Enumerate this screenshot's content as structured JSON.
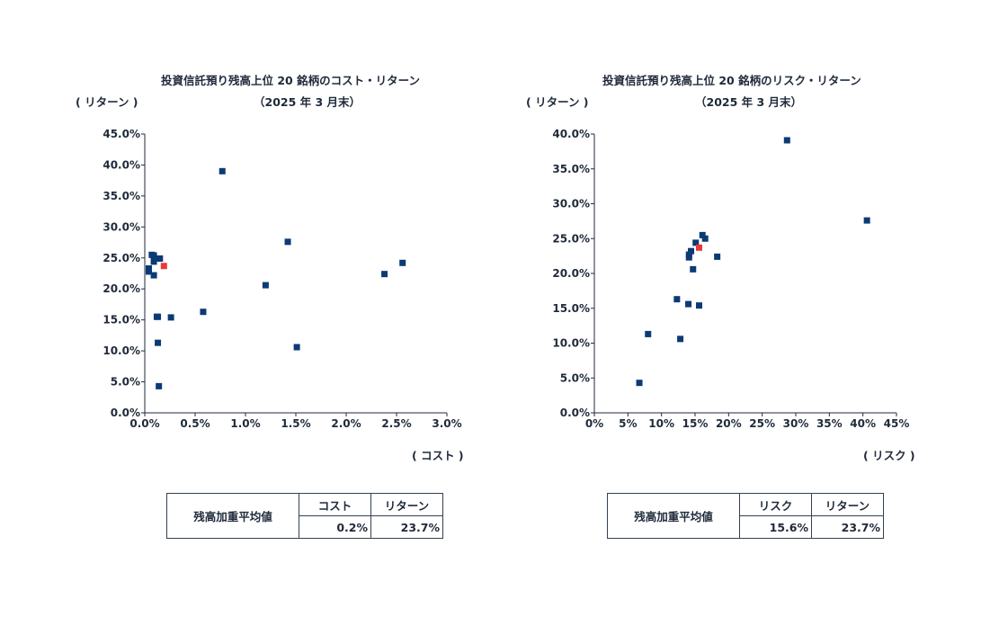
{
  "charts": [
    {
      "title_line1": "投資信託預り残高上位 20 銘柄のコスト・リターン",
      "title_line2": "（2025 年 3 月末）",
      "ylabel": "( リターン )",
      "xlabel": "( コスト )",
      "table": {
        "row_label": "残高加重平均値",
        "col1": "コスト",
        "col2": "リターン",
        "val1": "0.2%",
        "val2": "23.7%"
      }
    },
    {
      "title_line1": "投資信託預り残高上位 20 銘柄のリスク・リターン",
      "title_line2": "（2025 年 3 月末）",
      "ylabel": "( リターン )",
      "xlabel": "( リスク )",
      "table": {
        "row_label": "残高加重平均値",
        "col1": "リスク",
        "col2": "リターン",
        "val1": "15.6%",
        "val2": "23.7%"
      }
    }
  ],
  "chart_data": [
    {
      "type": "scatter",
      "title": "投資信託預り残高上位 20 銘柄のコスト・リターン（2025 年 3 月末）",
      "xlabel": "( コスト )",
      "ylabel": "( リターン )",
      "xlim": [
        0,
        3.0
      ],
      "ylim": [
        0,
        45
      ],
      "x_ticks": [
        "0.0%",
        "0.5%",
        "1.0%",
        "1.5%",
        "2.0%",
        "2.5%",
        "3.0%"
      ],
      "y_ticks": [
        "0.0%",
        "5.0%",
        "10.0%",
        "15.0%",
        "20.0%",
        "25.0%",
        "30.0%",
        "35.0%",
        "40.0%",
        "45.0%"
      ],
      "colors": {
        "funds": "#0b3a75",
        "weighted_average": "#e8393a"
      },
      "series": [
        {
          "points": [
            [
              0.77,
              39.0
            ],
            [
              1.42,
              27.6
            ],
            [
              2.56,
              24.2
            ],
            [
              2.38,
              22.4
            ],
            [
              1.2,
              20.6
            ],
            [
              0.58,
              16.3
            ],
            [
              1.51,
              10.6
            ],
            [
              0.07,
              25.5
            ],
            [
              0.09,
              25.4
            ],
            [
              0.15,
              24.9
            ],
            [
              0.09,
              24.4
            ],
            [
              0.04,
              23.3
            ],
            [
              0.04,
              22.8
            ],
            [
              0.09,
              22.2
            ],
            [
              0.12,
              15.5
            ],
            [
              0.13,
              15.5
            ],
            [
              0.26,
              15.4
            ],
            [
              0.13,
              11.3
            ],
            [
              0.14,
              4.3
            ]
          ]
        },
        {
          "points": [
            [
              0.19,
              23.7
            ]
          ]
        }
      ]
    },
    {
      "type": "scatter",
      "title": "投資信託預り残高上位 20 銘柄のリスク・リターン（2025 年 3 月末）",
      "xlabel": "( リスク )",
      "ylabel": "( リターン )",
      "xlim": [
        0,
        45
      ],
      "ylim": [
        0,
        40
      ],
      "x_ticks": [
        "0%",
        "5%",
        "10%",
        "15%",
        "20%",
        "25%",
        "30%",
        "35%",
        "40%",
        "45%"
      ],
      "y_ticks": [
        "0.0%",
        "5.0%",
        "10.0%",
        "15.0%",
        "20.0%",
        "25.0%",
        "30.0%",
        "35.0%",
        "40.0%"
      ],
      "colors": {
        "funds": "#0b3a75",
        "weighted_average": "#e8393a"
      },
      "series": [
        {
          "points": [
            [
              28.7,
              39.1
            ],
            [
              40.6,
              27.6
            ],
            [
              16.1,
              25.5
            ],
            [
              16.5,
              25.0
            ],
            [
              15.1,
              24.4
            ],
            [
              14.4,
              23.2
            ],
            [
              14.1,
              22.7
            ],
            [
              14.1,
              22.3
            ],
            [
              18.3,
              22.4
            ],
            [
              14.7,
              20.6
            ],
            [
              12.3,
              16.3
            ],
            [
              14.0,
              15.6
            ],
            [
              15.6,
              15.4
            ],
            [
              8.0,
              11.3
            ],
            [
              12.8,
              10.6
            ],
            [
              6.7,
              4.3
            ]
          ]
        },
        {
          "points": [
            [
              15.6,
              23.7
            ]
          ]
        }
      ]
    }
  ]
}
